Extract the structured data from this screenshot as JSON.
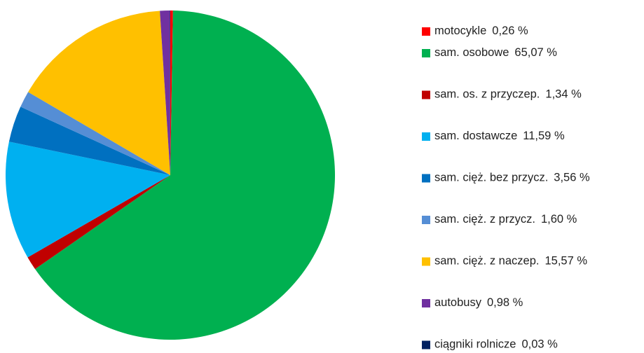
{
  "chart_data": {
    "type": "pie",
    "categories": [
      "motocykle",
      "sam. osobowe",
      "sam. os. z przyczep.",
      "sam. dostawcze",
      "sam. cięż. bez przycz.",
      "sam. cięż. z przycz.",
      "sam. cięż. z naczep.",
      "autobusy",
      "ciągniki rolnicze"
    ],
    "values": [
      0.26,
      65.07,
      1.34,
      11.59,
      3.56,
      1.6,
      15.57,
      0.98,
      0.03
    ],
    "value_labels": [
      "0,26 %",
      "65,07 %",
      "1,34 %",
      "11,59 %",
      "3,56 %",
      "1,60 %",
      "15,57 %",
      "0,98 %",
      "0,03 %"
    ],
    "colors": [
      "#ff0000",
      "#00b050",
      "#c00000",
      "#00b0f0",
      "#0070c0",
      "#558ed5",
      "#ffc000",
      "#7030a0",
      "#002060"
    ],
    "legend": "right"
  }
}
